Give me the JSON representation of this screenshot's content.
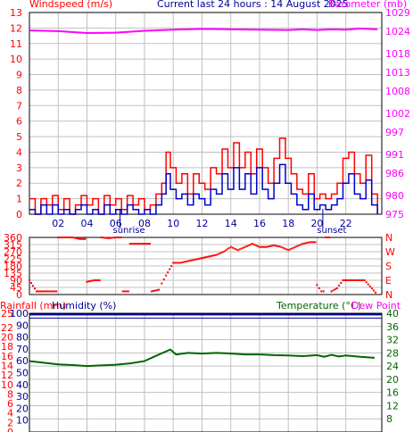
{
  "header": {
    "windspeed_label": "Windspeed (m/s)",
    "title": "Current last 24 hours : 14 August 2025",
    "barometer_label": "Barometer (mb)"
  },
  "colors": {
    "gust": "#ff0000",
    "wind": "#0000cc",
    "barometer": "#ff00ff",
    "direction": "#ff0000",
    "humidity": "#000099",
    "temperature": "#006600",
    "grid": "#c0c0c0",
    "sun_marks": "#000099"
  },
  "markers": {
    "sunrise": "sunrise",
    "sunset": "sunset"
  },
  "chart_data": [
    {
      "type": "line",
      "name": "wind-barometer",
      "x_tick_labels": [
        "02",
        "04",
        "06",
        "08",
        "10",
        "12",
        "14",
        "16",
        "18",
        "20",
        "22"
      ],
      "x_ticks_hours": [
        2,
        4,
        6,
        8,
        10,
        12,
        14,
        16,
        18,
        20,
        22
      ],
      "xlim_hours": [
        0,
        24.5
      ],
      "yleft_label": "Windspeed (m/s)",
      "yleft_ticks": [
        0,
        1,
        2,
        3,
        4,
        5,
        6,
        7,
        8,
        9,
        10,
        11,
        12,
        13
      ],
      "yleft_lim": [
        0,
        13
      ],
      "yright_label": "Barometer (mb)",
      "yright_ticks": [
        975,
        980,
        986,
        991,
        997,
        1002,
        1008,
        1013,
        1018,
        1024,
        1029
      ],
      "yright_lim": [
        975,
        1029
      ],
      "sunrise_hour": 6.3,
      "sunset_hour": 20.4,
      "series": [
        {
          "name": "gust",
          "axis": "left",
          "points": [
            [
              0,
              1
            ],
            [
              0.4,
              0
            ],
            [
              0.8,
              1
            ],
            [
              1.2,
              0.6
            ],
            [
              1.6,
              1.2
            ],
            [
              2,
              0.3
            ],
            [
              2.4,
              1
            ],
            [
              2.8,
              0
            ],
            [
              3.2,
              0.6
            ],
            [
              3.6,
              1.2
            ],
            [
              4,
              0.6
            ],
            [
              4.4,
              1
            ],
            [
              4.8,
              0
            ],
            [
              5.2,
              1.2
            ],
            [
              5.6,
              0.6
            ],
            [
              6,
              1
            ],
            [
              6.4,
              0.3
            ],
            [
              6.8,
              1.2
            ],
            [
              7.2,
              0.6
            ],
            [
              7.6,
              1
            ],
            [
              8,
              0.3
            ],
            [
              8.4,
              0.6
            ],
            [
              8.8,
              1.3
            ],
            [
              9.2,
              2
            ],
            [
              9.5,
              4
            ],
            [
              9.8,
              3
            ],
            [
              10.2,
              2
            ],
            [
              10.6,
              2.6
            ],
            [
              11,
              1.3
            ],
            [
              11.4,
              2.6
            ],
            [
              11.8,
              2
            ],
            [
              12.2,
              1.6
            ],
            [
              12.6,
              3
            ],
            [
              13,
              2.6
            ],
            [
              13.4,
              4.2
            ],
            [
              13.8,
              3
            ],
            [
              14.2,
              4.6
            ],
            [
              14.6,
              3
            ],
            [
              15,
              4
            ],
            [
              15.4,
              2.6
            ],
            [
              15.8,
              4.2
            ],
            [
              16.2,
              3
            ],
            [
              16.6,
              2
            ],
            [
              17,
              3.6
            ],
            [
              17.4,
              4.9
            ],
            [
              17.8,
              3.6
            ],
            [
              18.2,
              2.6
            ],
            [
              18.6,
              1.6
            ],
            [
              19,
              1.3
            ],
            [
              19.4,
              2.6
            ],
            [
              19.8,
              1
            ],
            [
              20.2,
              1.3
            ],
            [
              20.6,
              1
            ],
            [
              21,
              1.3
            ],
            [
              21.4,
              2
            ],
            [
              21.8,
              3.6
            ],
            [
              22.2,
              4
            ],
            [
              22.6,
              2.6
            ],
            [
              23,
              2
            ],
            [
              23.4,
              3.8
            ],
            [
              23.8,
              1.3
            ],
            [
              24.2,
              0
            ]
          ]
        },
        {
          "name": "wind",
          "axis": "left",
          "points": [
            [
              0,
              0.3
            ],
            [
              0.4,
              0
            ],
            [
              0.8,
              0.6
            ],
            [
              1.2,
              0
            ],
            [
              1.6,
              0.6
            ],
            [
              2,
              0
            ],
            [
              2.4,
              0.3
            ],
            [
              2.8,
              0
            ],
            [
              3.2,
              0.3
            ],
            [
              3.6,
              0.6
            ],
            [
              4,
              0
            ],
            [
              4.4,
              0.3
            ],
            [
              4.8,
              0
            ],
            [
              5.2,
              0.6
            ],
            [
              5.6,
              0
            ],
            [
              6,
              0.3
            ],
            [
              6.4,
              0
            ],
            [
              6.8,
              0.6
            ],
            [
              7.2,
              0.3
            ],
            [
              7.6,
              0
            ],
            [
              8,
              0.3
            ],
            [
              8.4,
              0
            ],
            [
              8.8,
              0.6
            ],
            [
              9.2,
              1.3
            ],
            [
              9.5,
              2.6
            ],
            [
              9.8,
              1.6
            ],
            [
              10.2,
              1
            ],
            [
              10.6,
              1.3
            ],
            [
              11,
              0.6
            ],
            [
              11.4,
              1.3
            ],
            [
              11.8,
              1
            ],
            [
              12.2,
              0.6
            ],
            [
              12.6,
              1.6
            ],
            [
              13,
              1.3
            ],
            [
              13.4,
              2.6
            ],
            [
              13.8,
              1.6
            ],
            [
              14.2,
              3
            ],
            [
              14.6,
              1.6
            ],
            [
              15,
              2.6
            ],
            [
              15.4,
              1.3
            ],
            [
              15.8,
              3
            ],
            [
              16.2,
              1.6
            ],
            [
              16.6,
              1
            ],
            [
              17,
              2
            ],
            [
              17.4,
              3.2
            ],
            [
              17.8,
              2
            ],
            [
              18.2,
              1.3
            ],
            [
              18.6,
              0.6
            ],
            [
              19,
              0.3
            ],
            [
              19.4,
              1.3
            ],
            [
              19.8,
              0.3
            ],
            [
              20.2,
              0.6
            ],
            [
              20.6,
              0.3
            ],
            [
              21,
              0.6
            ],
            [
              21.4,
              1
            ],
            [
              21.8,
              2
            ],
            [
              22.2,
              2.6
            ],
            [
              22.6,
              1.3
            ],
            [
              23,
              1
            ],
            [
              23.4,
              2.2
            ],
            [
              23.8,
              0.6
            ],
            [
              24.2,
              0
            ]
          ]
        },
        {
          "name": "barometer",
          "axis": "right",
          "points": [
            [
              0,
              1024.2
            ],
            [
              2,
              1024
            ],
            [
              4,
              1023.5
            ],
            [
              6,
              1023.6
            ],
            [
              8,
              1024.1
            ],
            [
              10,
              1024.4
            ],
            [
              12,
              1024.6
            ],
            [
              14,
              1024.5
            ],
            [
              16,
              1024.4
            ],
            [
              18,
              1024.3
            ],
            [
              19,
              1024.5
            ],
            [
              20,
              1024.3
            ],
            [
              21,
              1024.5
            ],
            [
              22,
              1024.4
            ],
            [
              23,
              1024.7
            ],
            [
              24.2,
              1024.5
            ]
          ]
        }
      ]
    },
    {
      "type": "scatter",
      "name": "wind-direction",
      "yleft_ticks": [
        0,
        90,
        180,
        270,
        360
      ],
      "yleft_extra_ticks": [
        45,
        135,
        225,
        315
      ],
      "yleft_lim": [
        0,
        360
      ],
      "yright_labels": [
        "N",
        "E",
        "S",
        "W",
        "N"
      ],
      "xlim_hours": [
        0,
        24.5
      ],
      "series": [
        {
          "name": "direction",
          "points": [
            [
              0,
              90
            ],
            [
              0.5,
              20
            ],
            [
              1,
              20
            ],
            [
              1.5,
              20
            ],
            [
              2,
              360
            ],
            [
              2.5,
              360
            ],
            [
              3,
              360
            ],
            [
              3.5,
              350
            ],
            [
              4,
              80
            ],
            [
              4.5,
              90
            ],
            [
              5,
              360
            ],
            [
              5.5,
              355
            ],
            [
              6,
              360
            ],
            [
              6.5,
              20
            ],
            [
              7,
              320
            ],
            [
              7.5,
              320
            ],
            [
              8,
              320
            ],
            [
              8.5,
              20
            ],
            [
              9,
              30
            ],
            [
              9.2,
              70
            ],
            [
              9.5,
              120
            ],
            [
              10,
              200
            ],
            [
              10.5,
              200
            ],
            [
              11,
              210
            ],
            [
              11.5,
              220
            ],
            [
              12,
              230
            ],
            [
              12.5,
              240
            ],
            [
              13,
              250
            ],
            [
              13.5,
              270
            ],
            [
              14,
              300
            ],
            [
              14.5,
              280
            ],
            [
              15,
              300
            ],
            [
              15.5,
              320
            ],
            [
              16,
              300
            ],
            [
              16.5,
              300
            ],
            [
              17,
              310
            ],
            [
              17.5,
              300
            ],
            [
              18,
              280
            ],
            [
              18.5,
              300
            ],
            [
              19,
              320
            ],
            [
              19.5,
              330
            ],
            [
              20,
              60
            ],
            [
              20.3,
              20
            ],
            [
              20.6,
              360
            ],
            [
              21,
              20
            ],
            [
              21.4,
              40
            ],
            [
              21.8,
              90
            ],
            [
              22.3,
              90
            ],
            [
              22.8,
              90
            ],
            [
              23.3,
              90
            ],
            [
              24.2,
              0
            ]
          ]
        }
      ]
    },
    {
      "type": "line",
      "name": "humidity-temperature",
      "yleft_label": "Rainfall (mm)",
      "yleft_ticks": [
        0,
        2,
        4,
        6,
        8,
        10,
        12,
        14,
        16,
        18,
        20,
        22,
        25
      ],
      "yleft_lim": [
        0,
        25
      ],
      "humidity_label": "Humidity (%)",
      "humidity_ticks": [
        10,
        20,
        30,
        40,
        50,
        60,
        70,
        80,
        90,
        100
      ],
      "yright_label": "Temperature (°C)",
      "yright_ticks": [
        8,
        12,
        16,
        20,
        24,
        28,
        32,
        36,
        40
      ],
      "yright_lim": [
        4,
        40
      ],
      "dewpoint_label": "Dew Point",
      "xlim_hours": [
        0,
        24.5
      ],
      "series": [
        {
          "name": "humidity",
          "axis": "humidity",
          "points": [
            [
              0,
              99
            ],
            [
              24.5,
              99
            ]
          ]
        },
        {
          "name": "temperature",
          "axis": "right",
          "points": [
            [
              0,
              25.5
            ],
            [
              1,
              25
            ],
            [
              2,
              24.5
            ],
            [
              3,
              24.3
            ],
            [
              4,
              24
            ],
            [
              5,
              24.2
            ],
            [
              6,
              24.4
            ],
            [
              7,
              24.8
            ],
            [
              8,
              25.5
            ],
            [
              9,
              27.5
            ],
            [
              9.8,
              29
            ],
            [
              10.2,
              27.5
            ],
            [
              11,
              28
            ],
            [
              12,
              27.8
            ],
            [
              13,
              28
            ],
            [
              14,
              27.8
            ],
            [
              15,
              27.5
            ],
            [
              16,
              27.5
            ],
            [
              17,
              27.3
            ],
            [
              18,
              27.2
            ],
            [
              19,
              27
            ],
            [
              20,
              27.3
            ],
            [
              20.5,
              26.8
            ],
            [
              21,
              27.4
            ],
            [
              21.5,
              26.9
            ],
            [
              22,
              27.2
            ],
            [
              23,
              26.8
            ],
            [
              24,
              26.5
            ]
          ]
        }
      ]
    }
  ]
}
